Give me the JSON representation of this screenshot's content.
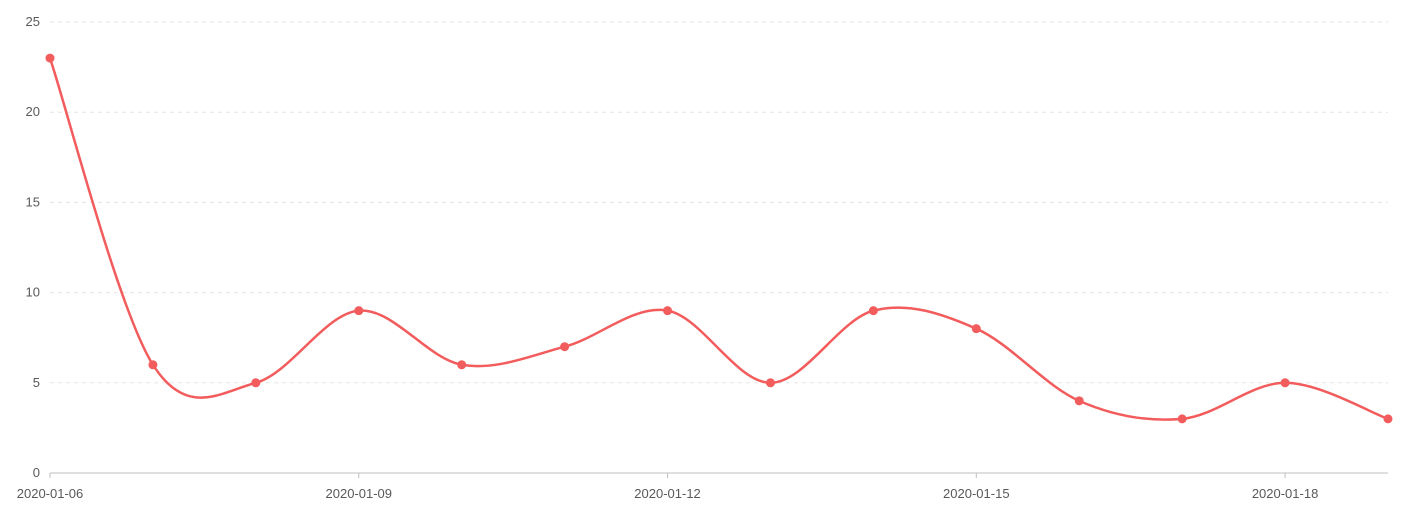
{
  "chart_data": {
    "type": "line",
    "smooth": true,
    "title": "",
    "xlabel": "",
    "ylabel": "",
    "x": [
      "2020-01-06",
      "2020-01-07",
      "2020-01-08",
      "2020-01-09",
      "2020-01-10",
      "2020-01-11",
      "2020-01-12",
      "2020-01-13",
      "2020-01-14",
      "2020-01-15",
      "2020-01-16",
      "2020-01-17",
      "2020-01-18",
      "2020-01-19"
    ],
    "x_tick_labels": [
      "2020-01-06",
      "2020-01-09",
      "2020-01-12",
      "2020-01-15",
      "2020-01-18"
    ],
    "y_ticks": [
      0,
      5,
      10,
      15,
      20,
      25
    ],
    "ylim": [
      0,
      25
    ],
    "grid": true,
    "legend": "none",
    "series": [
      {
        "values": [
          23,
          6,
          5,
          9,
          6,
          7,
          9,
          5,
          9,
          8,
          4,
          3,
          5,
          3
        ],
        "color": "#f25c5c"
      }
    ]
  }
}
